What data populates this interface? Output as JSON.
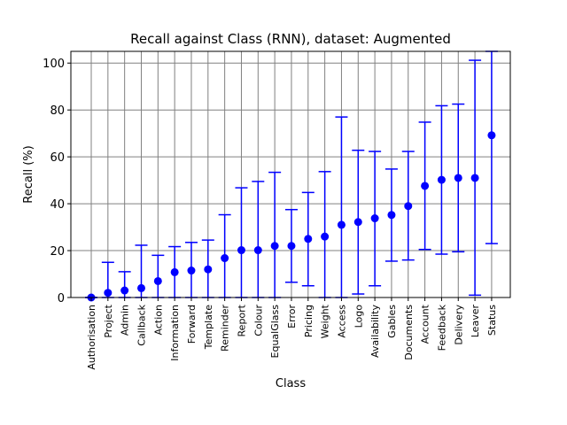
{
  "chart_data": {
    "type": "scatter",
    "title": "Recall against Class (RNN), dataset: Augmented",
    "xlabel": "Class",
    "ylabel": "Recall (%)",
    "ylim": [
      0,
      105
    ],
    "yticks": [
      0,
      20,
      40,
      60,
      80,
      100
    ],
    "grid": true,
    "categories": [
      "Authorisation",
      "Project",
      "Admin",
      "Callback",
      "Action",
      "Information",
      "Forward",
      "Template",
      "Reminder",
      "Report",
      "Colour",
      "EqualGlass",
      "Error",
      "Pricing",
      "Weight",
      "Access",
      "Logo",
      "Availability",
      "Gables",
      "Documents",
      "Account",
      "Feedback",
      "Delivery",
      "Leaver",
      "Status"
    ],
    "series": [
      {
        "values": [
          0,
          2,
          3,
          4,
          7,
          10.8,
          11.5,
          12,
          16.8,
          20.2,
          20.2,
          22,
          22,
          25,
          26,
          31,
          32.2,
          33.8,
          35.2,
          39,
          47.6,
          50.2,
          51,
          51,
          69.2
        ],
        "error_low": [
          0,
          0,
          0,
          0,
          0,
          0,
          0,
          0,
          0,
          0,
          0,
          0,
          6.5,
          5,
          0,
          0,
          1.5,
          5,
          15.5,
          16,
          20.5,
          18.5,
          19.5,
          1,
          23
        ],
        "error_high": [
          0,
          15,
          11,
          22.3,
          18,
          21.7,
          23.5,
          24.5,
          35.3,
          46.8,
          49.5,
          53.4,
          37.5,
          44.8,
          53.7,
          77,
          62.8,
          62.3,
          54.8,
          62.3,
          74.8,
          81.8,
          82.5,
          101.2,
          105
        ]
      }
    ],
    "colors": {
      "marker": "#0000ff",
      "errorbar": "#0000ff",
      "grid": "#808080"
    }
  }
}
